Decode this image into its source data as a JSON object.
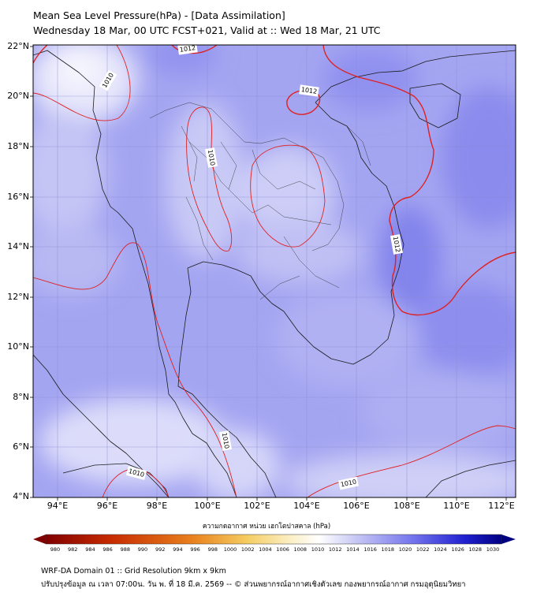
{
  "header": {
    "title_line1": "Mean Sea Level Pressure(hPa) - [Data Assimilation]",
    "title_line2": "Wednesday 18 Mar, 00 UTC FCST+021, Valid at :: Wed 18 Mar, 21 UTC"
  },
  "map": {
    "lon_ticks": [
      "94°E",
      "96°E",
      "98°E",
      "100°E",
      "102°E",
      "104°E",
      "106°E",
      "108°E",
      "110°E",
      "112°E"
    ],
    "lat_ticks": [
      "22°N",
      "20°N",
      "18°N",
      "16°N",
      "14°N",
      "12°N",
      "10°N",
      "8°N",
      "6°N",
      "4°N"
    ],
    "lon_range": [
      93,
      112.4
    ],
    "lat_range": [
      4,
      22
    ],
    "contour_labels": [
      "1012",
      "1010",
      "1012",
      "1010",
      "1012",
      "1010",
      "1010",
      "1010"
    ],
    "colors": {
      "background_fill": "#9a9bf1",
      "contour_line": "#e02020",
      "coastline": "#1a1a1a",
      "gridline": "#8a8ad0"
    }
  },
  "colorbar": {
    "title": "ความกดอากาศ หน่วย เฮกโตปาสคาล (hPa)",
    "ticks": [
      "980",
      "982",
      "984",
      "986",
      "988",
      "990",
      "992",
      "994",
      "996",
      "998",
      "1000",
      "1002",
      "1004",
      "1006",
      "1008",
      "1010",
      "1012",
      "1014",
      "1016",
      "1018",
      "1020",
      "1022",
      "1024",
      "1026",
      "1028",
      "1030"
    ],
    "colors": [
      "#800000",
      "#c62a00",
      "#e8801c",
      "#f5cc60",
      "#fbf0c8",
      "#ffffff",
      "#c8c8f5",
      "#7878ee",
      "#2020d0",
      "#000080"
    ]
  },
  "footer": {
    "line1": "WRF-DA Domain 01 :: Grid Resolution 9km x 9km",
    "line2": "ปรับปรุงข้อมูล ณ เวลา 07:00น. วัน พ. ที่ 18 มี.ค. 2569 -- © ส่วนพยากรณ์อากาศเชิงตัวเลข กองพยากรณ์อากาศ กรมอุตุนิยมวิทยา"
  }
}
